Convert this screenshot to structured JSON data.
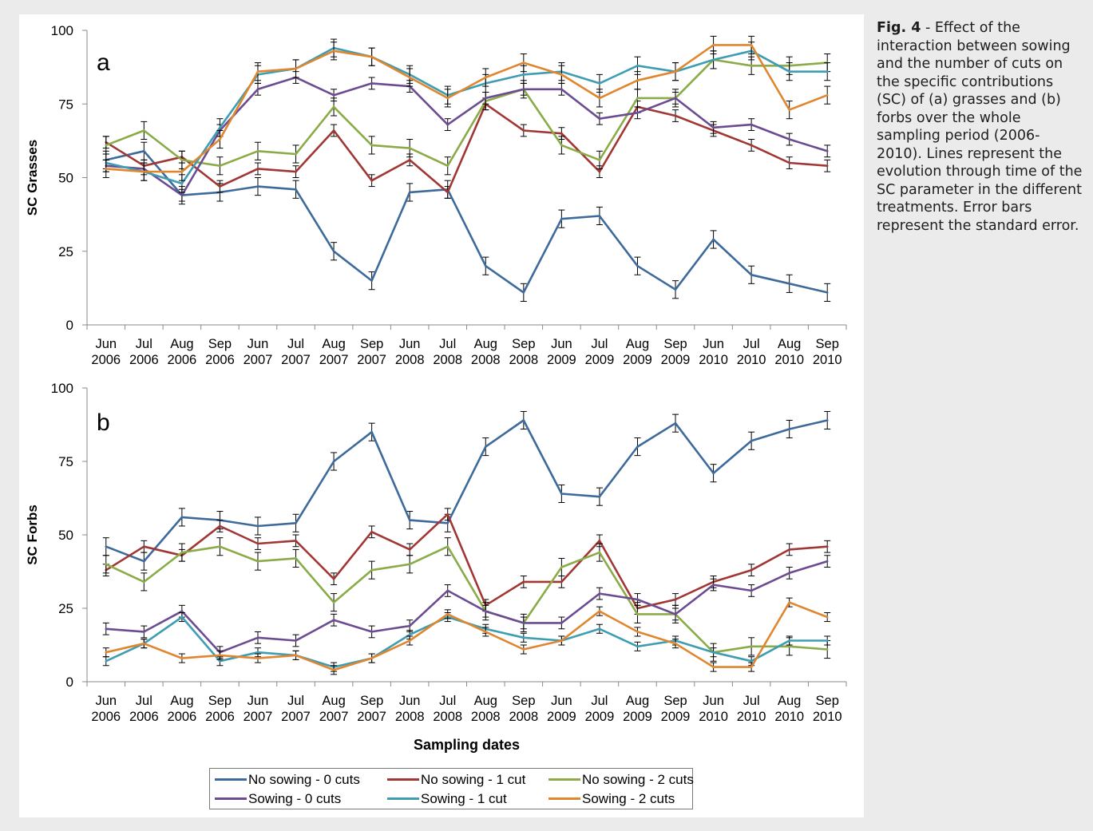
{
  "caption": {
    "fig_label": "Fig. 4",
    "text": " - Effect of the interaction between sowing and the number of cuts on the specific contributions (SC) of (a) grasses and (b) forbs over the whole sampling period (2006-2010). Lines represent the evolution through time of the SC parameter in the different treatments. Error bars represent the standard error."
  },
  "legend": [
    {
      "label": "No sowing - 0 cuts",
      "color": "#3d6a9b"
    },
    {
      "label": "No sowing - 1 cut",
      "color": "#a03734"
    },
    {
      "label": "No sowing - 2 cuts",
      "color": "#8aab47"
    },
    {
      "label": "Sowing - 0 cuts",
      "color": "#6b4c91"
    },
    {
      "label": "Sowing - 1 cut",
      "color": "#3e9db2"
    },
    {
      "label": "Sowing - 2 cuts",
      "color": "#e0862f"
    }
  ],
  "chart_data": [
    {
      "type": "line",
      "panel_label": "a",
      "ylabel": "SC Grasses",
      "xlabel": "",
      "ylim": [
        0,
        100
      ],
      "yticks": [
        0,
        25,
        50,
        75,
        100
      ],
      "categories": [
        [
          "Jun",
          "2006"
        ],
        [
          "Jul",
          "2006"
        ],
        [
          "Aug",
          "2006"
        ],
        [
          "Sep",
          "2006"
        ],
        [
          "Jun",
          "2007"
        ],
        [
          "Jul",
          "2007"
        ],
        [
          "Aug",
          "2007"
        ],
        [
          "Sep",
          "2007"
        ],
        [
          "Jun",
          "2008"
        ],
        [
          "Jul",
          "2008"
        ],
        [
          "Aug",
          "2008"
        ],
        [
          "Sep",
          "2008"
        ],
        [
          "Jun",
          "2009"
        ],
        [
          "Jul",
          "2009"
        ],
        [
          "Aug",
          "2009"
        ],
        [
          "Sep",
          "2009"
        ],
        [
          "Jun",
          "2010"
        ],
        [
          "Jul",
          "2010"
        ],
        [
          "Aug",
          "2010"
        ],
        [
          "Sep",
          "2010"
        ]
      ],
      "error_bars": true,
      "series": [
        {
          "name": "No sowing - 0 cuts",
          "color": "#3d6a9b",
          "values": [
            56,
            59,
            44,
            45,
            47,
            46,
            25,
            15,
            45,
            46,
            20,
            11,
            36,
            37,
            20,
            12,
            29,
            17,
            14,
            11
          ],
          "errors": [
            3,
            3,
            3,
            3,
            3,
            3,
            3,
            3,
            3,
            3,
            3,
            3,
            3,
            3,
            3,
            3,
            3,
            3,
            3,
            3
          ]
        },
        {
          "name": "No sowing - 1 cut",
          "color": "#a03734",
          "values": [
            62,
            54,
            57,
            47,
            53,
            52,
            66,
            49,
            56,
            45,
            75,
            66,
            65,
            52,
            74,
            71,
            66,
            61,
            55,
            54
          ],
          "errors": [
            2,
            2,
            2,
            2,
            2,
            2,
            2,
            2,
            2,
            2,
            2,
            2,
            2,
            2,
            2,
            2,
            2,
            2,
            2,
            2
          ]
        },
        {
          "name": "No sowing - 2 cuts",
          "color": "#8aab47",
          "values": [
            61,
            66,
            56,
            54,
            59,
            58,
            74,
            61,
            60,
            54,
            76,
            80,
            61,
            56,
            77,
            77,
            90,
            88,
            88,
            89
          ],
          "errors": [
            3,
            3,
            3,
            3,
            3,
            3,
            3,
            3,
            3,
            3,
            3,
            3,
            3,
            3,
            3,
            3,
            3,
            3,
            3,
            3
          ]
        },
        {
          "name": "Sowing - 0 cuts",
          "color": "#6b4c91",
          "values": [
            54,
            53,
            44,
            66,
            80,
            84,
            78,
            82,
            81,
            68,
            77,
            80,
            80,
            70,
            72,
            77,
            67,
            68,
            63,
            59
          ],
          "errors": [
            2,
            2,
            2,
            2,
            2,
            2,
            2,
            2,
            2,
            2,
            2,
            2,
            2,
            2,
            2,
            2,
            2,
            2,
            2,
            2
          ]
        },
        {
          "name": "Sowing - 1 cut",
          "color": "#3e9db2",
          "values": [
            55,
            52,
            48,
            67,
            85,
            87,
            94,
            91,
            85,
            78,
            82,
            85,
            86,
            82,
            88,
            86,
            90,
            93,
            86,
            86
          ],
          "errors": [
            3,
            3,
            3,
            3,
            3,
            3,
            3,
            3,
            3,
            3,
            3,
            3,
            3,
            3,
            3,
            3,
            3,
            3,
            3,
            3
          ]
        },
        {
          "name": "Sowing - 2 cuts",
          "color": "#e0862f",
          "values": [
            53,
            52,
            52,
            63,
            86,
            87,
            93,
            91,
            84,
            77,
            84,
            89,
            85,
            77,
            83,
            86,
            95,
            95,
            73,
            78
          ],
          "errors": [
            3,
            3,
            3,
            3,
            3,
            3,
            3,
            3,
            3,
            3,
            3,
            3,
            3,
            3,
            3,
            3,
            3,
            3,
            3,
            3
          ]
        }
      ]
    },
    {
      "type": "line",
      "panel_label": "b",
      "ylabel": "SC Forbs",
      "xlabel": "Sampling dates",
      "ylim": [
        0,
        100
      ],
      "yticks": [
        0,
        25,
        50,
        75,
        100
      ],
      "categories": [
        [
          "Jun",
          "2006"
        ],
        [
          "Jul",
          "2006"
        ],
        [
          "Aug",
          "2006"
        ],
        [
          "Sep",
          "2006"
        ],
        [
          "Jun",
          "2007"
        ],
        [
          "Jul",
          "2007"
        ],
        [
          "Aug",
          "2007"
        ],
        [
          "Sep",
          "2007"
        ],
        [
          "Jun",
          "2008"
        ],
        [
          "Jul",
          "2008"
        ],
        [
          "Aug",
          "2008"
        ],
        [
          "Sep",
          "2008"
        ],
        [
          "Jun",
          "2009"
        ],
        [
          "Jul",
          "2009"
        ],
        [
          "Aug",
          "2009"
        ],
        [
          "Sep",
          "2009"
        ],
        [
          "Jun",
          "2010"
        ],
        [
          "Jul",
          "2010"
        ],
        [
          "Aug",
          "2010"
        ],
        [
          "Sep",
          "2010"
        ]
      ],
      "error_bars": true,
      "series": [
        {
          "name": "No sowing - 0 cuts",
          "color": "#3d6a9b",
          "values": [
            46,
            41,
            56,
            55,
            53,
            54,
            75,
            85,
            55,
            54,
            80,
            89,
            64,
            63,
            80,
            88,
            71,
            82,
            86,
            89
          ],
          "errors": [
            3,
            3,
            3,
            3,
            3,
            3,
            3,
            3,
            3,
            3,
            3,
            3,
            3,
            3,
            3,
            3,
            3,
            3,
            3,
            3
          ]
        },
        {
          "name": "No sowing - 1 cut",
          "color": "#a03734",
          "values": [
            38,
            46,
            43,
            53,
            47,
            48,
            35,
            51,
            45,
            57,
            26,
            34,
            34,
            48,
            25,
            28,
            34,
            38,
            45,
            46
          ],
          "errors": [
            2,
            2,
            2,
            2,
            2,
            2,
            2,
            2,
            2,
            2,
            2,
            2,
            2,
            2,
            2,
            2,
            2,
            2,
            2,
            2
          ]
        },
        {
          "name": "No sowing - 2 cuts",
          "color": "#8aab47",
          "values": [
            40,
            34,
            44,
            46,
            41,
            42,
            27,
            38,
            40,
            46,
            24,
            20,
            39,
            44,
            23,
            23,
            10,
            12,
            12,
            11
          ],
          "errors": [
            3,
            3,
            3,
            3,
            3,
            3,
            3,
            3,
            3,
            3,
            3,
            3,
            3,
            3,
            3,
            3,
            3,
            3,
            3,
            3
          ]
        },
        {
          "name": "Sowing - 0 cuts",
          "color": "#6b4c91",
          "values": [
            18,
            17,
            24,
            10,
            15,
            14,
            21,
            17,
            19,
            31,
            24,
            20,
            20,
            30,
            28,
            23,
            33,
            31,
            37,
            41
          ],
          "errors": [
            2,
            2,
            2,
            2,
            2,
            2,
            2,
            2,
            2,
            2,
            2,
            2,
            2,
            2,
            2,
            2,
            2,
            2,
            2,
            2
          ]
        },
        {
          "name": "Sowing - 1 cut",
          "color": "#3e9db2",
          "values": [
            7,
            13,
            22,
            7,
            10,
            9,
            5,
            8,
            16,
            22,
            18,
            15,
            14,
            18,
            12,
            14,
            10,
            7,
            14,
            14
          ],
          "errors": [
            1.5,
            1.5,
            1.5,
            1.5,
            1.5,
            1.5,
            1.5,
            1.5,
            1.5,
            1.5,
            1.5,
            1.5,
            1.5,
            1.5,
            1.5,
            1.5,
            1.5,
            1.5,
            1.5,
            1.5
          ]
        },
        {
          "name": "Sowing - 2 cuts",
          "color": "#e0862f",
          "values": [
            10,
            13,
            8,
            9,
            8,
            9,
            4,
            8,
            14,
            23,
            17,
            11,
            14,
            24,
            17,
            13,
            5,
            5,
            27,
            22
          ],
          "errors": [
            1.5,
            1.5,
            1.5,
            1.5,
            1.5,
            1.5,
            1.5,
            1.5,
            1.5,
            1.5,
            1.5,
            1.5,
            1.5,
            1.5,
            1.5,
            1.5,
            1.5,
            1.5,
            1.5,
            1.5
          ]
        }
      ]
    }
  ]
}
